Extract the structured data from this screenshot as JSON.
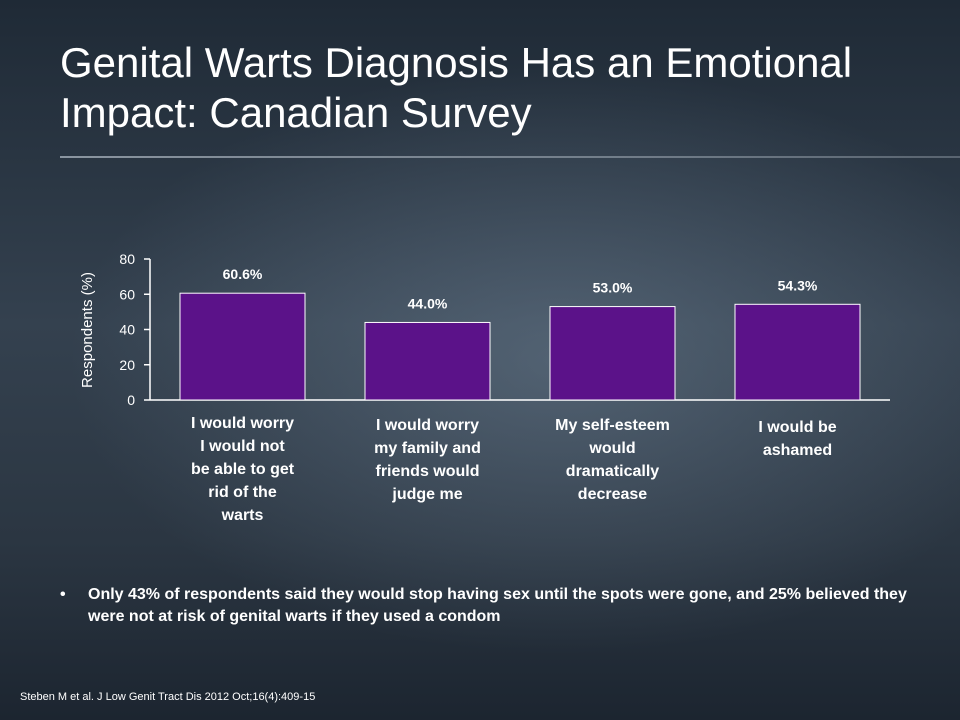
{
  "slide": {
    "title": "Genital Warts Diagnosis Has an Emotional Impact: Canadian Survey",
    "bullet": "Only 43% of respondents said they would stop having sex until the spots were gone, and 25% believed they were not at risk of genital warts if they used a condom",
    "bullet_marker": "•",
    "footnote": "Steben M et al. J Low Genit Tract Dis 2012 Oct;16(4):409-15"
  },
  "chart_data": {
    "type": "bar",
    "title": "",
    "xlabel": "",
    "ylabel": "Respondents (%)",
    "ylim": [
      0,
      80
    ],
    "yticks": [
      "0",
      "20",
      "40",
      "60",
      "80"
    ],
    "categories": [
      [
        "I would worry",
        "I would not",
        "be able to get",
        "rid of the",
        "warts"
      ],
      [
        "I would worry",
        "my family and",
        "friends would",
        "judge me"
      ],
      [
        "My self-esteem",
        "would",
        "dramatically",
        "decrease"
      ],
      [
        "I would be",
        "ashamed"
      ]
    ],
    "values": [
      60.6,
      44.0,
      53.0,
      54.3
    ],
    "data_labels": [
      "60.6%",
      "44.0%",
      "53.0%",
      "54.3%"
    ],
    "bar_color": "#5b1289",
    "bar_border_color": "#ffffff",
    "grid": false,
    "legend": "none"
  }
}
